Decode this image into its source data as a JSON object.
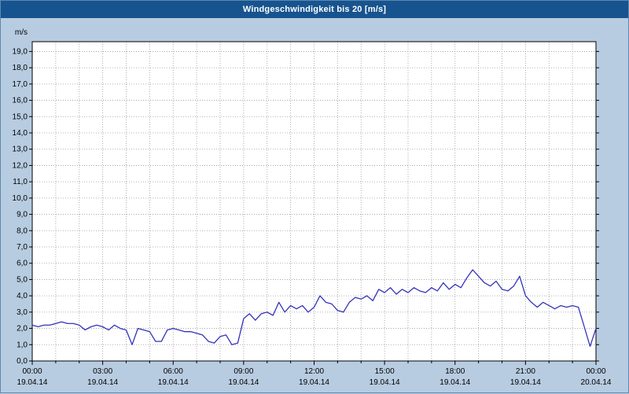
{
  "window": {
    "title": "Windgeschwindigkeit bis 20 [m/s]"
  },
  "chart_data": {
    "type": "line",
    "title": "Windgeschwindigkeit bis 20 [m/s]",
    "unit_label": "m/s",
    "line_color": "#3333bb",
    "plot_background": "#ffffff",
    "page_background": "#b7cce1",
    "titlebar_color": "#17548f",
    "grid_color": "#9a9a9a",
    "axis_color": "#000000",
    "grid": "dotted, hourly vertical and 1.0 m/s horizontal",
    "legend_position": "none",
    "ylim": [
      0,
      19.6
    ],
    "ytick_step": 1.0,
    "ytick_labels": [
      "0,0",
      "1,0",
      "2,0",
      "3,0",
      "4,0",
      "5,0",
      "6,0",
      "7,0",
      "8,0",
      "9,0",
      "10,0",
      "11,0",
      "12,0",
      "13,0",
      "14,0",
      "15,0",
      "16,0",
      "17,0",
      "18,0",
      "19,0"
    ],
    "x_hours_span": 24,
    "x_step_hours": 0.25,
    "xtick_every_hours": 3,
    "xtick_labels": [
      "00:00",
      "03:00",
      "06:00",
      "09:00",
      "12:00",
      "15:00",
      "18:00",
      "21:00",
      "00:00"
    ],
    "xtick_dates": [
      "19.04.14",
      "19.04.14",
      "19.04.14",
      "19.04.14",
      "19.04.14",
      "19.04.14",
      "19.04.14",
      "19.04.14",
      "20.04.14"
    ],
    "values": [
      2.2,
      2.1,
      2.2,
      2.2,
      2.3,
      2.4,
      2.3,
      2.3,
      2.2,
      1.9,
      2.1,
      2.2,
      2.1,
      1.9,
      2.2,
      2.0,
      1.9,
      1.0,
      2.0,
      1.9,
      1.8,
      1.2,
      1.2,
      1.9,
      2.0,
      1.9,
      1.8,
      1.8,
      1.7,
      1.6,
      1.2,
      1.1,
      1.5,
      1.6,
      1.0,
      1.1,
      2.6,
      2.9,
      2.5,
      2.9,
      3.0,
      2.8,
      3.6,
      3.0,
      3.4,
      3.2,
      3.4,
      3.0,
      3.3,
      4.0,
      3.6,
      3.5,
      3.1,
      3.0,
      3.6,
      3.9,
      3.8,
      4.0,
      3.7,
      4.4,
      4.2,
      4.5,
      4.1,
      4.4,
      4.2,
      4.5,
      4.3,
      4.2,
      4.5,
      4.3,
      4.8,
      4.4,
      4.7,
      4.5,
      5.1,
      5.6,
      5.2,
      4.8,
      4.6,
      4.9,
      4.4,
      4.3,
      4.6,
      5.2,
      4.0,
      3.6,
      3.3,
      3.6,
      3.4,
      3.2,
      3.4,
      3.3,
      3.4,
      3.3,
      2.1,
      0.9,
      2.0
    ]
  }
}
